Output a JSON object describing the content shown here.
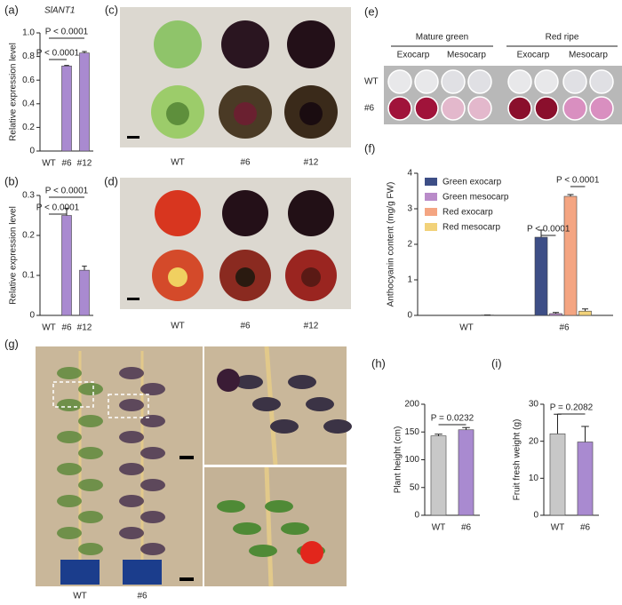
{
  "chart_data": [
    {
      "type": "bar",
      "panel": "(a)",
      "title": "SlANT1",
      "y_label": "Relative expression level",
      "categories": [
        "WT",
        "#6",
        "#12"
      ],
      "values": [
        0,
        0.72,
        0.83
      ],
      "errors": [
        0,
        0.005,
        0.012
      ],
      "colors": [
        "#c8c8c8",
        "#a98ad0",
        "#a98ad0"
      ],
      "ylim": [
        0,
        1
      ],
      "yticks": [
        0,
        0.2,
        0.4,
        0.6,
        0.8,
        {
          "value": 1,
          "label": "1.0"
        }
      ],
      "annotations": [
        "P < 0.0001",
        "P < 0.0001"
      ]
    },
    {
      "type": "bar",
      "panel": "(b)",
      "y_label": "Relative expression level",
      "categories": [
        "WT",
        "#6",
        "#12"
      ],
      "values": [
        0,
        0.25,
        0.113
      ],
      "errors": [
        0,
        0.018,
        0.01
      ],
      "colors": [
        "#c8c8c8",
        "#a98ad0",
        "#a98ad0"
      ],
      "ylim": [
        0,
        0.3
      ],
      "yticks": [
        0,
        0.1,
        0.2,
        0.3
      ],
      "annotations": [
        "P < 0.0001",
        "P < 0.0001"
      ]
    },
    {
      "type": "grouped_bar",
      "panel": "(f)",
      "y_label": "Anthocyanin content (mg/g FW)",
      "categories": [
        "WT",
        "#6"
      ],
      "series": [
        {
          "name": "Green exocarp",
          "color": "#3d4e86",
          "values": [
            0,
            2.2
          ],
          "errors": [
            0,
            0.2
          ]
        },
        {
          "name": "Green mesocarp",
          "color": "#b98bc9",
          "values": [
            0,
            0.05
          ],
          "errors": [
            0,
            0.03
          ]
        },
        {
          "name": "Red exocarp",
          "color": "#f4a582",
          "values": [
            0,
            3.35
          ],
          "errors": [
            0,
            0.05
          ]
        },
        {
          "name": "Red mesocarp",
          "color": "#f2d27a",
          "values": [
            0.01,
            0.12
          ],
          "errors": [
            0,
            0.06
          ]
        }
      ],
      "ylim": [
        0,
        4
      ],
      "yticks": [
        0,
        1,
        2,
        3,
        4
      ],
      "legend": "upper left",
      "annotations": [
        "P < 0.0001",
        "P < 0.0001"
      ]
    },
    {
      "type": "bar",
      "panel": "(h)",
      "y_label": "Plant height (cm)",
      "categories": [
        "WT",
        "#6"
      ],
      "values": [
        143,
        154
      ],
      "errors": [
        3,
        4
      ],
      "colors": [
        "#c8c8c8",
        "#a98ad0"
      ],
      "ylim": [
        0,
        200
      ],
      "yticks": [
        0,
        50,
        100,
        150,
        200
      ],
      "annotations": [
        "P = 0.0232"
      ]
    },
    {
      "type": "bar",
      "panel": "(i)",
      "y_label": "Fruit fresh weight (g)",
      "categories": [
        "WT",
        "#6"
      ],
      "values": [
        22,
        19.8
      ],
      "errors": [
        5.3,
        4.2
      ],
      "colors": [
        "#c8c8c8",
        "#a98ad0"
      ],
      "ylim": [
        0,
        30
      ],
      "yticks": [
        0,
        10,
        20,
        30
      ],
      "annotations": [
        "P = 0.2082"
      ]
    }
  ],
  "photo_panels": [
    {
      "panel": "(c)",
      "labels": [
        "WT",
        "#6",
        "#12"
      ]
    },
    {
      "panel": "(d)",
      "labels": [
        "WT",
        "#6",
        "#12"
      ]
    },
    {
      "panel": "(e)",
      "groups": [
        "Mature green",
        "Red ripe"
      ],
      "tissues": [
        "Exocarp",
        "Mesocarp",
        "Exocarp",
        "Mesocarp"
      ],
      "rows": [
        "WT",
        "#6"
      ]
    },
    {
      "panel": "(g)",
      "labels": [
        "WT",
        "#6"
      ]
    }
  ]
}
